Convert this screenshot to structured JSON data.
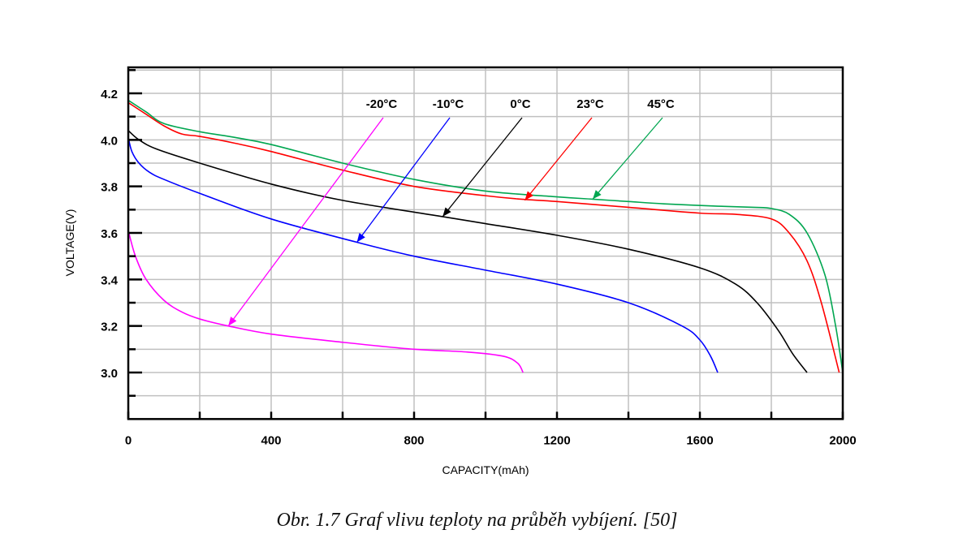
{
  "caption": "Obr. 1.7 Graf vlivu teploty na průběh vybíjení. [50]",
  "chart_data": {
    "type": "line",
    "title": "",
    "xlabel": "CAPACITY(mAh)",
    "ylabel": "VOLTAGE(V)",
    "xlim": [
      0,
      2000
    ],
    "ylim": [
      2.8,
      4.3
    ],
    "grid": true,
    "x_ticks": [
      0,
      400,
      800,
      1200,
      1600,
      2000
    ],
    "x_minor_ticks": [
      200,
      600,
      1000,
      1400,
      1800
    ],
    "y_ticks": [
      3.0,
      3.2,
      3.4,
      3.6,
      3.8,
      4.0,
      4.2
    ],
    "y_tick_labels": [
      "3.0",
      "3.2",
      "3.4",
      "3.6",
      "3.8",
      "4.0",
      "4.2"
    ],
    "y_minor_ticks": [
      2.9,
      3.1,
      3.3,
      3.5,
      3.7,
      3.9,
      4.1,
      4.3
    ],
    "legend_placement": "top (labels with arrows pointing to curves)",
    "series": [
      {
        "name": "-20°C",
        "color": "#ff00ff",
        "x": [
          0,
          20,
          50,
          100,
          150,
          200,
          280,
          400,
          600,
          800,
          950,
          1050,
          1090,
          1105
        ],
        "y": [
          3.61,
          3.5,
          3.4,
          3.31,
          3.26,
          3.23,
          3.2,
          3.165,
          3.13,
          3.1,
          3.088,
          3.07,
          3.04,
          3.0
        ],
        "arrow_to": [
          280,
          3.2
        ]
      },
      {
        "name": "-10°C",
        "color": "#0000ff",
        "x": [
          0,
          10,
          30,
          60,
          100,
          200,
          400,
          640,
          800,
          1000,
          1200,
          1400,
          1550,
          1600,
          1630,
          1650
        ],
        "y": [
          4.01,
          3.95,
          3.9,
          3.86,
          3.83,
          3.77,
          3.66,
          3.56,
          3.5,
          3.44,
          3.38,
          3.3,
          3.2,
          3.14,
          3.07,
          3.0
        ],
        "arrow_to": [
          640,
          3.56
        ]
      },
      {
        "name": "0°C",
        "color": "#000000",
        "x": [
          0,
          30,
          80,
          200,
          400,
          600,
          880,
          1000,
          1200,
          1400,
          1600,
          1700,
          1760,
          1820,
          1860,
          1900
        ],
        "y": [
          4.04,
          4.0,
          3.96,
          3.9,
          3.81,
          3.74,
          3.67,
          3.64,
          3.59,
          3.53,
          3.45,
          3.38,
          3.3,
          3.18,
          3.08,
          3.0
        ],
        "arrow_to": [
          880,
          3.67
        ]
      },
      {
        "name": "23°C",
        "color": "#ff0000",
        "x": [
          0,
          50,
          100,
          150,
          200,
          300,
          400,
          600,
          800,
          1000,
          1100,
          1200,
          1400,
          1600,
          1700,
          1800,
          1850,
          1900,
          1940,
          1990
        ],
        "y": [
          4.16,
          4.11,
          4.06,
          4.025,
          4.015,
          3.985,
          3.95,
          3.87,
          3.8,
          3.76,
          3.745,
          3.735,
          3.71,
          3.685,
          3.68,
          3.66,
          3.6,
          3.48,
          3.3,
          3.0
        ],
        "arrow_to": [
          1110,
          3.74
        ]
      },
      {
        "name": "45°C",
        "color": "#00a650",
        "x": [
          0,
          50,
          100,
          200,
          300,
          400,
          600,
          800,
          1000,
          1200,
          1300,
          1400,
          1500,
          1650,
          1750,
          1800,
          1850,
          1900,
          1950,
          1980,
          2000
        ],
        "y": [
          4.17,
          4.12,
          4.07,
          4.035,
          4.01,
          3.98,
          3.9,
          3.83,
          3.78,
          3.755,
          3.745,
          3.735,
          3.725,
          3.715,
          3.71,
          3.705,
          3.68,
          3.6,
          3.42,
          3.2,
          3.0
        ],
        "arrow_to": [
          1300,
          3.745
        ]
      }
    ]
  }
}
